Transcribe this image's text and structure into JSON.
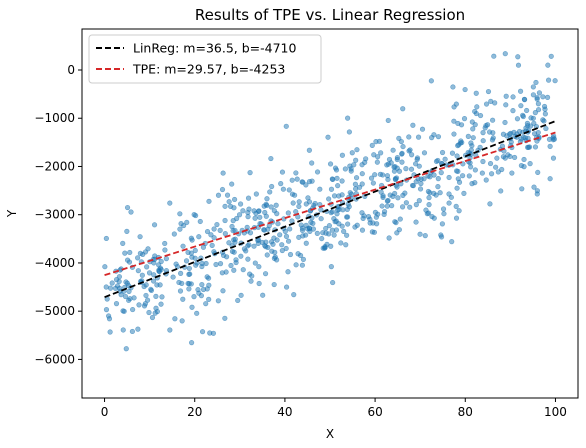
{
  "chart_data": {
    "type": "scatter",
    "title": "Results of TPE vs. Linear Regression",
    "xlabel": "X",
    "ylabel": "Y",
    "xlim": [
      -5,
      105
    ],
    "ylim": [
      -6800,
      850
    ],
    "xticks": [
      0,
      20,
      40,
      60,
      80,
      100
    ],
    "yticks": [
      -6000,
      -5000,
      -4000,
      -3000,
      -2000,
      -1000,
      0
    ],
    "grid": false,
    "legend_position": "top-left",
    "scatter": {
      "color": "#1f77b4",
      "point_count": 800,
      "x_range": [
        0,
        100
      ],
      "trend": {
        "slope": 36.5,
        "intercept": -4710
      },
      "residual_std": 620,
      "points": []
    },
    "lines": [
      {
        "name": "LinReg: m=36.5, b=-4710",
        "slope": 36.5,
        "intercept": -4710,
        "color": "#000000",
        "style": "dashed"
      },
      {
        "name": "TPE: m=29.57, b=-4253",
        "slope": 29.57,
        "intercept": -4253,
        "color": "#d62728",
        "style": "dashed"
      }
    ]
  }
}
